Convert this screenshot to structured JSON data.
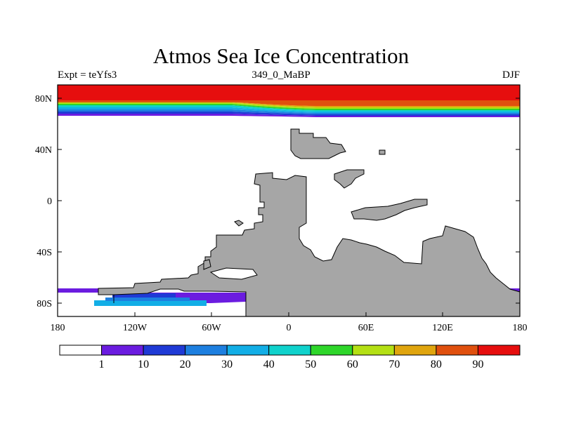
{
  "title": "Atmos Sea Ice Concentration",
  "subtitle_left": "Expt = teYfs3",
  "subtitle_center": "349_0_MaBP",
  "subtitle_right": "DJF",
  "x_ticks": [
    "180",
    "120W",
    "60W",
    "0",
    "60E",
    "120E",
    "180"
  ],
  "y_ticks": [
    "80N",
    "40N",
    "0",
    "40S",
    "80S"
  ],
  "colorbar": {
    "labels": [
      "1",
      "10",
      "20",
      "30",
      "40",
      "50",
      "60",
      "70",
      "80",
      "90"
    ],
    "colors": [
      "#ffffff",
      "#6b1ce0",
      "#1f3ad6",
      "#1d7fe0",
      "#12aee6",
      "#10d2cc",
      "#2ed62a",
      "#b4e014",
      "#e0a50e",
      "#e0500e",
      "#e60e0e"
    ]
  },
  "colors": {
    "land": "#a6a6a6",
    "ocean": "#ffffff"
  }
}
